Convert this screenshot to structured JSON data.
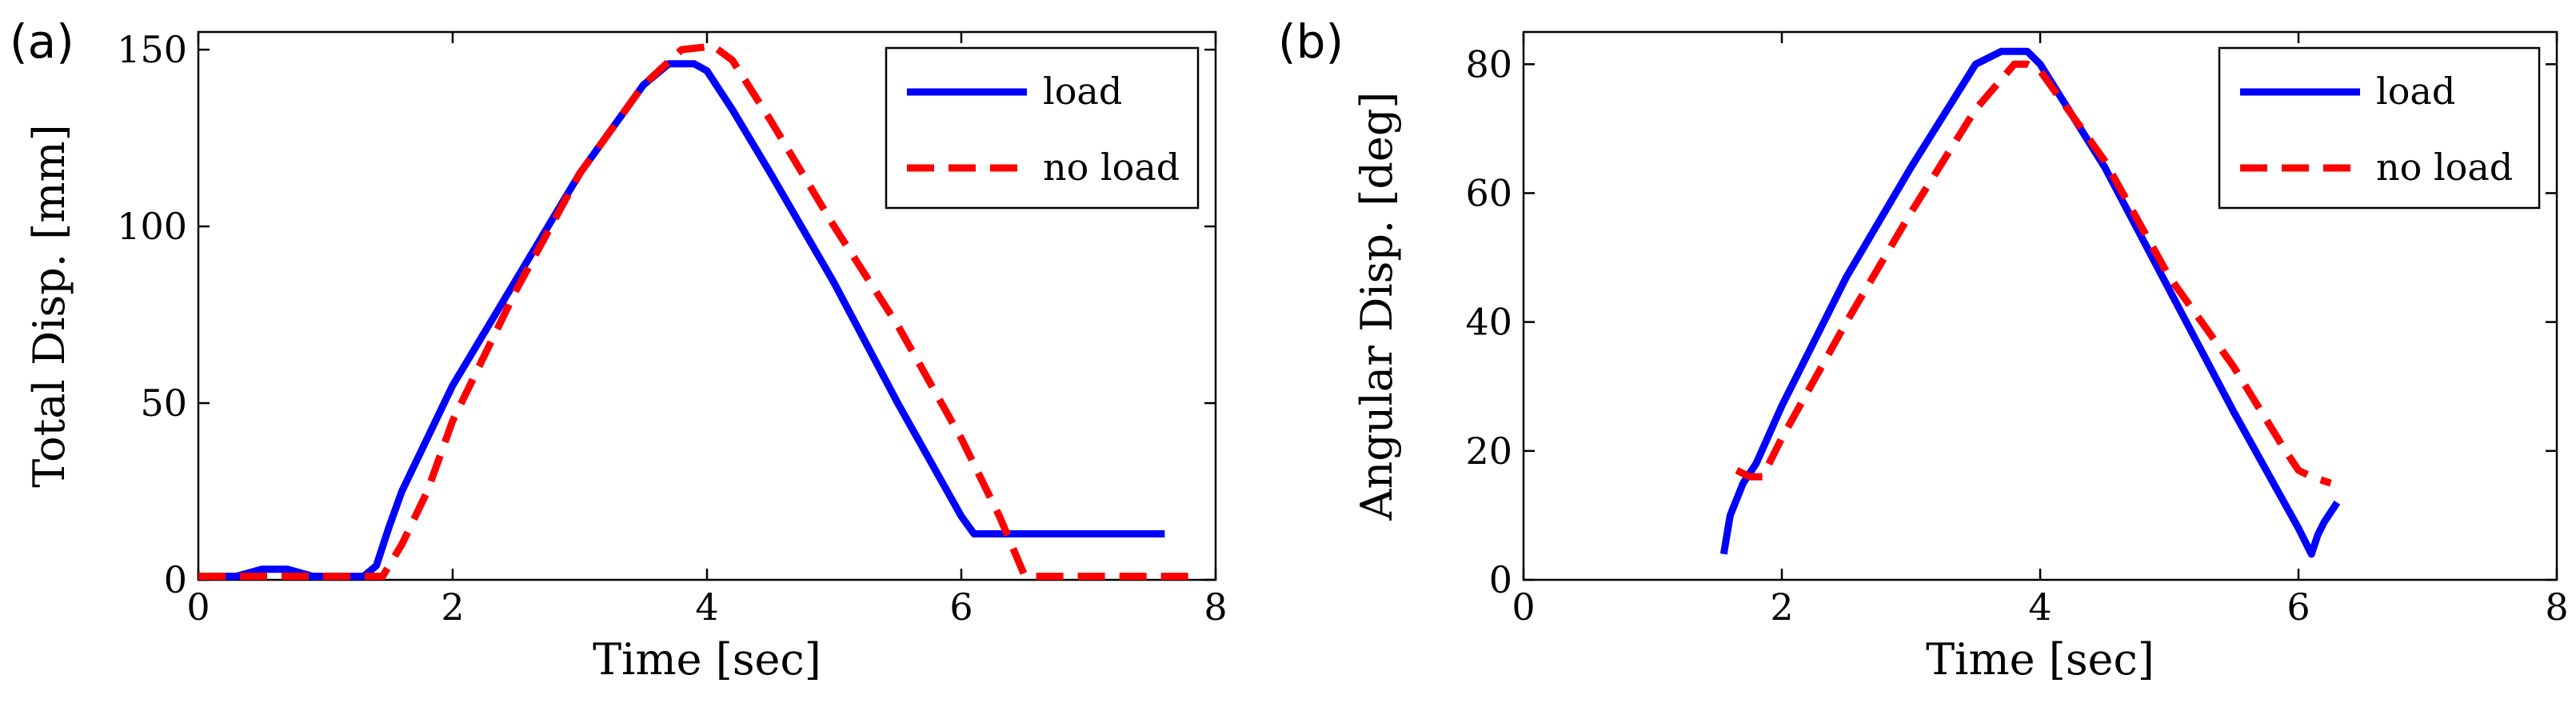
{
  "chart_data": [
    {
      "type": "line",
      "panel_label": "(a)",
      "xlabel": "Time [sec]",
      "ylabel": "Total Disp. [mm]",
      "xlim": [
        0,
        8
      ],
      "ylim": [
        0,
        155
      ],
      "xticks": [
        0,
        2,
        4,
        6,
        8
      ],
      "yticks": [
        0,
        50,
        100,
        150
      ],
      "legend_position": "top-right",
      "series": [
        {
          "name": "load",
          "color": "#0000ff",
          "style": "solid",
          "x": [
            0,
            0.3,
            0.5,
            0.7,
            0.9,
            1.1,
            1.3,
            1.4,
            1.5,
            1.6,
            1.8,
            2.0,
            2.5,
            3.0,
            3.5,
            3.7,
            3.9,
            4.0,
            4.2,
            4.5,
            5.0,
            5.5,
            6.0,
            6.1,
            6.2,
            6.4,
            6.6,
            7.0,
            7.4,
            7.6
          ],
          "y": [
            1,
            1,
            3,
            3,
            1,
            1,
            1,
            4,
            15,
            25,
            40,
            55,
            85,
            115,
            140,
            146,
            146,
            144,
            133,
            115,
            84,
            50,
            18,
            13,
            13,
            13,
            13,
            13,
            13,
            13
          ]
        },
        {
          "name": "no load",
          "color": "#ff0000",
          "style": "dashed",
          "x": [
            0,
            0.5,
            1.0,
            1.3,
            1.45,
            1.6,
            1.8,
            2.0,
            2.5,
            3.0,
            3.5,
            3.8,
            4.05,
            4.2,
            4.5,
            5.0,
            5.5,
            6.0,
            6.3,
            6.5,
            7.0,
            7.5,
            7.85
          ],
          "y": [
            1,
            1,
            1,
            1,
            1,
            10,
            25,
            45,
            82,
            115,
            140,
            150,
            151,
            147,
            130,
            100,
            72,
            40,
            18,
            1,
            1,
            1,
            1
          ]
        }
      ]
    },
    {
      "type": "line",
      "panel_label": "(b)",
      "xlabel": "Time [sec]",
      "ylabel": "Angular Disp. [deg]",
      "xlim": [
        0,
        8
      ],
      "ylim": [
        0,
        85
      ],
      "xticks": [
        0,
        2,
        4,
        6,
        8
      ],
      "yticks": [
        0,
        20,
        40,
        60,
        80
      ],
      "legend_position": "top-right",
      "series": [
        {
          "name": "load",
          "color": "#0000ff",
          "style": "solid",
          "x": [
            1.55,
            1.6,
            1.7,
            1.8,
            2.0,
            2.5,
            3.0,
            3.5,
            3.7,
            3.9,
            4.0,
            4.5,
            5.0,
            5.5,
            6.0,
            6.1,
            6.15,
            6.2,
            6.3
          ],
          "y": [
            4,
            10,
            15,
            18,
            27,
            47,
            64,
            80,
            82,
            82,
            80,
            64,
            45,
            26,
            8,
            4,
            7,
            9,
            12
          ]
        },
        {
          "name": "no load",
          "color": "#ff0000",
          "style": "dashed",
          "x": [
            1.65,
            1.75,
            1.85,
            2.0,
            2.5,
            3.0,
            3.5,
            3.8,
            3.9,
            4.0,
            4.5,
            5.0,
            5.5,
            5.9,
            6.0,
            6.1,
            6.25
          ],
          "y": [
            17,
            16,
            16,
            22,
            40,
            57,
            73,
            80,
            80,
            79,
            65,
            47,
            33,
            20,
            17,
            16,
            15
          ]
        }
      ]
    }
  ]
}
